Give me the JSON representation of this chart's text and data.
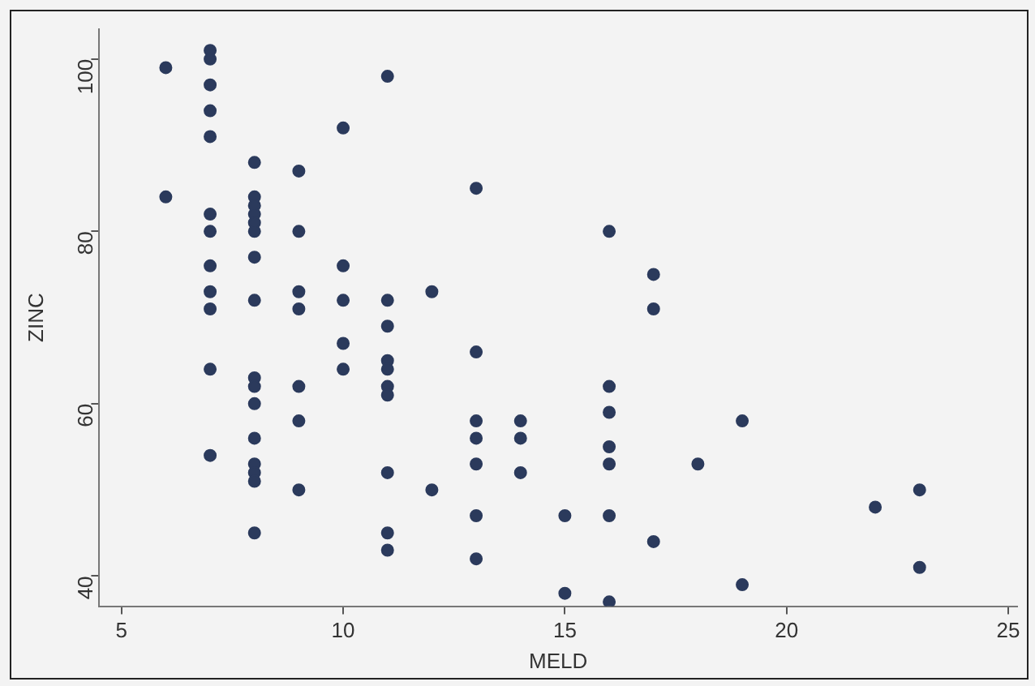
{
  "chart_data": {
    "type": "scatter",
    "xlabel": "MELD",
    "ylabel": "ZINC",
    "xlim": [
      4.5,
      25.2
    ],
    "ylim": [
      36.5,
      103.5
    ],
    "xticks": [
      5,
      10,
      15,
      20,
      25
    ],
    "yticks": [
      40,
      60,
      80,
      100
    ],
    "grid": false,
    "legend": false,
    "marker": "circle",
    "series": [
      {
        "color": "#2b3a5c",
        "x": [
          6,
          6,
          7,
          7,
          7,
          7,
          7,
          7,
          7,
          7,
          7,
          7,
          7,
          7,
          8,
          8,
          8,
          8,
          8,
          8,
          8,
          8,
          8,
          8,
          8,
          8,
          8,
          8,
          8,
          8,
          9,
          9,
          9,
          9,
          9,
          9,
          9,
          10,
          10,
          10,
          10,
          10,
          11,
          11,
          11,
          11,
          11,
          11,
          11,
          11,
          11,
          11,
          12,
          12,
          13,
          13,
          13,
          13,
          13,
          13,
          13,
          14,
          14,
          14,
          15,
          15,
          16,
          16,
          16,
          16,
          16,
          16,
          16,
          17,
          17,
          17,
          18,
          19,
          19,
          22,
          23,
          23
        ],
        "values": [
          99,
          84,
          101,
          100,
          97,
          94,
          91,
          82,
          80,
          76,
          73,
          71,
          64,
          54,
          88,
          84,
          83,
          82,
          81,
          80,
          77,
          72,
          63,
          62,
          60,
          56,
          53,
          52,
          51,
          45,
          87,
          80,
          73,
          71,
          62,
          58,
          50,
          92,
          76,
          72,
          67,
          64,
          98,
          72,
          69,
          65,
          64,
          62,
          61,
          52,
          45,
          43,
          73,
          50,
          85,
          66,
          58,
          56,
          53,
          47,
          42,
          58,
          56,
          52,
          47,
          38,
          80,
          62,
          59,
          55,
          53,
          47,
          37,
          75,
          71,
          44,
          53,
          58,
          39,
          48,
          50,
          41
        ]
      }
    ]
  }
}
